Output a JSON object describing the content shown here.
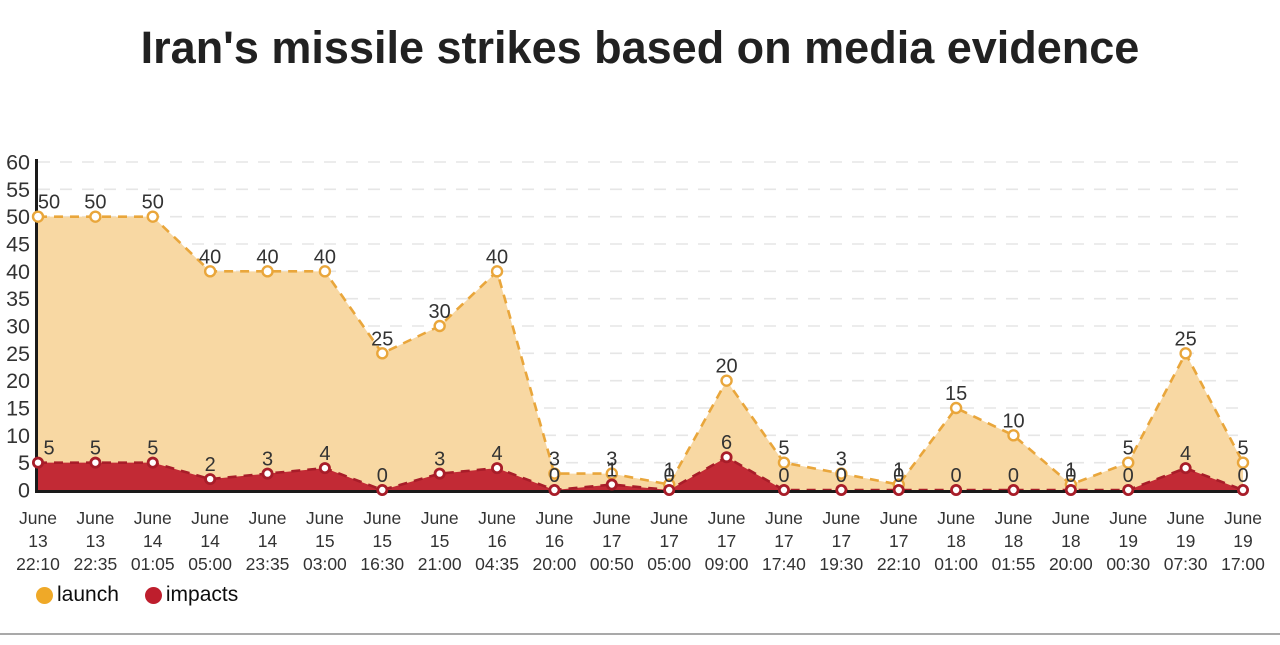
{
  "chart_data": {
    "type": "area",
    "title": "Iran's missile strikes based on media evidence",
    "categories": [
      "June 13 22:10",
      "June 13 22:35",
      "June 14 01:05",
      "June 14 05:00",
      "June 14 23:35",
      "June 15 03:00",
      "June 15 16:30",
      "June 15 21:00",
      "June 16 04:35",
      "June 16 20:00",
      "June 17 00:50",
      "June 17 05:00",
      "June 17 09:00",
      "June 17 17:40",
      "June 17 19:30",
      "June 17 22:10",
      "June 18 01:00",
      "June 18 01:55",
      "June 18 20:00",
      "June 19 00:30",
      "June 19 07:30",
      "June 19 17:00"
    ],
    "series": [
      {
        "name": "launch",
        "line_color": "#E9A63B",
        "fill_color": "#F8D8A3",
        "values": [
          50,
          50,
          50,
          40,
          40,
          40,
          25,
          30,
          40,
          3,
          3,
          1,
          20,
          5,
          3,
          1,
          15,
          10,
          1,
          5,
          25,
          5
        ]
      },
      {
        "name": "impacts",
        "line_color": "#A81D29",
        "fill_color": "#C22A35",
        "values": [
          5,
          5,
          5,
          2,
          3,
          4,
          0,
          3,
          4,
          0,
          1,
          0,
          6,
          0,
          0,
          0,
          0,
          0,
          0,
          0,
          4,
          0
        ]
      }
    ],
    "ylim": [
      0,
      60
    ],
    "ytick_step": 5,
    "grid": "horizontal-dashed",
    "line_style": "dashed",
    "legend_position": "bottom-left",
    "axis_color": "#1A1A1A",
    "grid_color": "#E6E6E6",
    "label_color": "#333333"
  },
  "legend": {
    "items": [
      {
        "label": "launch",
        "color": "#EFA928"
      },
      {
        "label": "impacts",
        "color": "#BE1E2D"
      }
    ]
  }
}
